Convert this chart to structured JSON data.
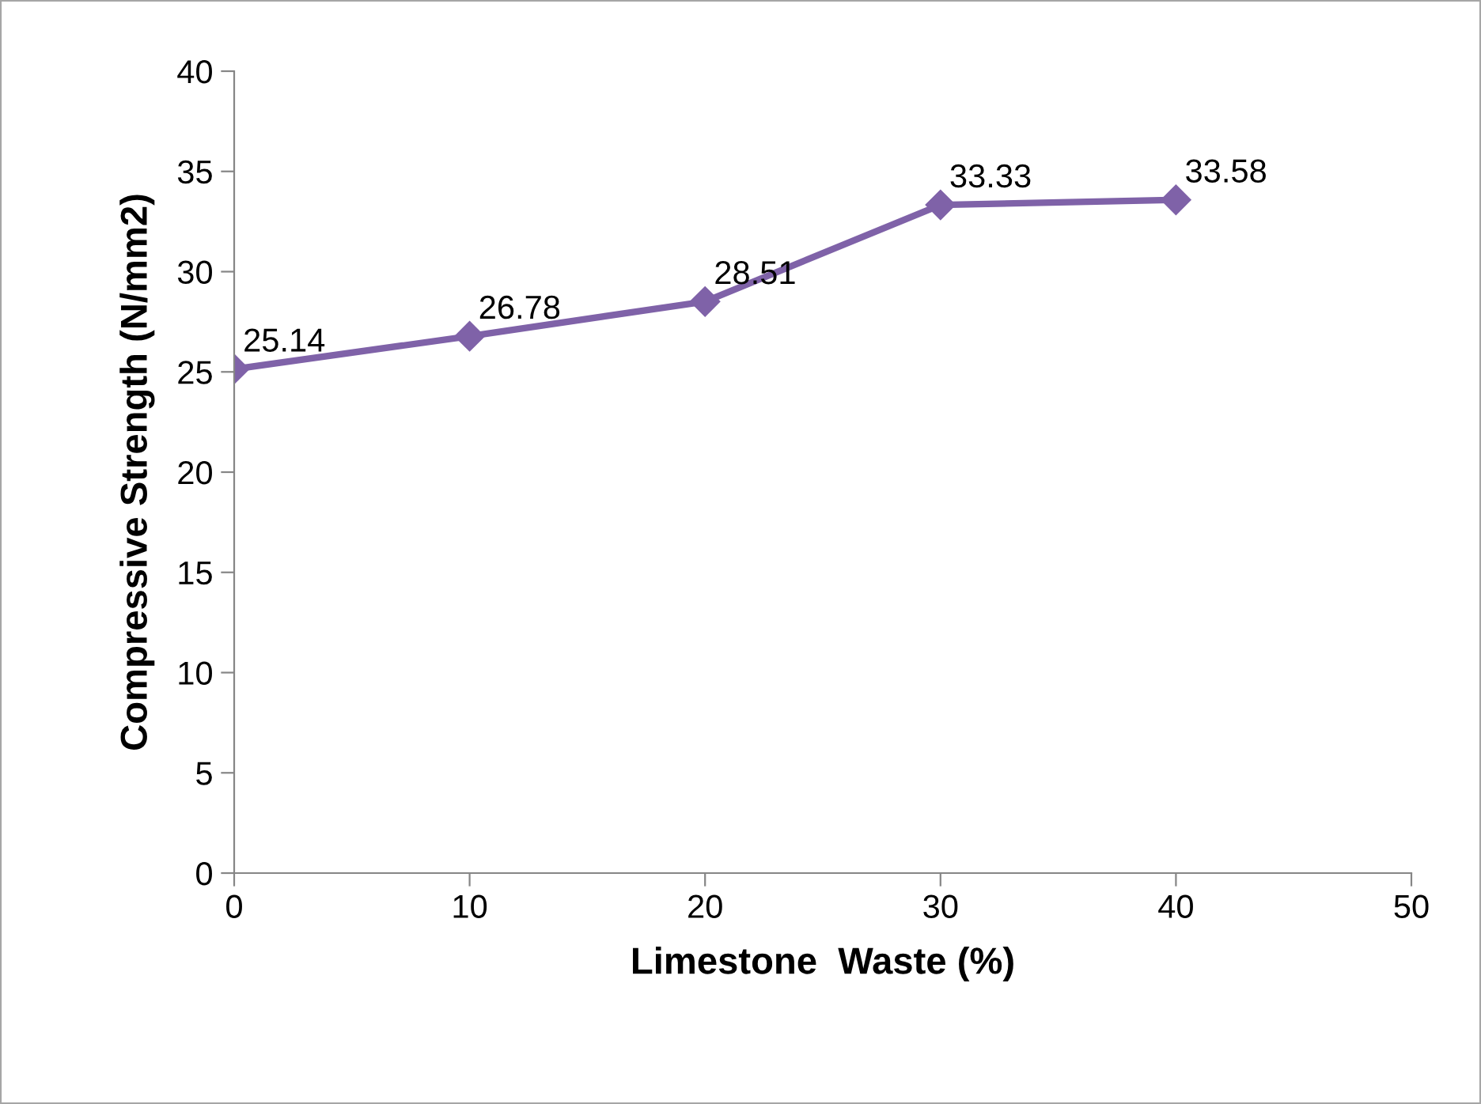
{
  "chart_data": {
    "type": "line",
    "xlabel": "Limestone  Waste (%)",
    "ylabel": "Compressive Strength (N/mm2)",
    "x": [
      0,
      10,
      20,
      30,
      40
    ],
    "series": [
      {
        "color": "#7f62a8",
        "values": [
          25.14,
          26.78,
          28.51,
          33.33,
          33.58
        ]
      }
    ],
    "xlim": [
      0,
      50
    ],
    "xticks": [
      0,
      10,
      20,
      30,
      40,
      50
    ],
    "ylim": [
      0,
      40
    ],
    "yticks": [
      0,
      5,
      10,
      15,
      20,
      25,
      30,
      35,
      40
    ],
    "marker": "diamond",
    "line_style": "solid",
    "grid": false,
    "legend": false,
    "data_labels": true
  }
}
